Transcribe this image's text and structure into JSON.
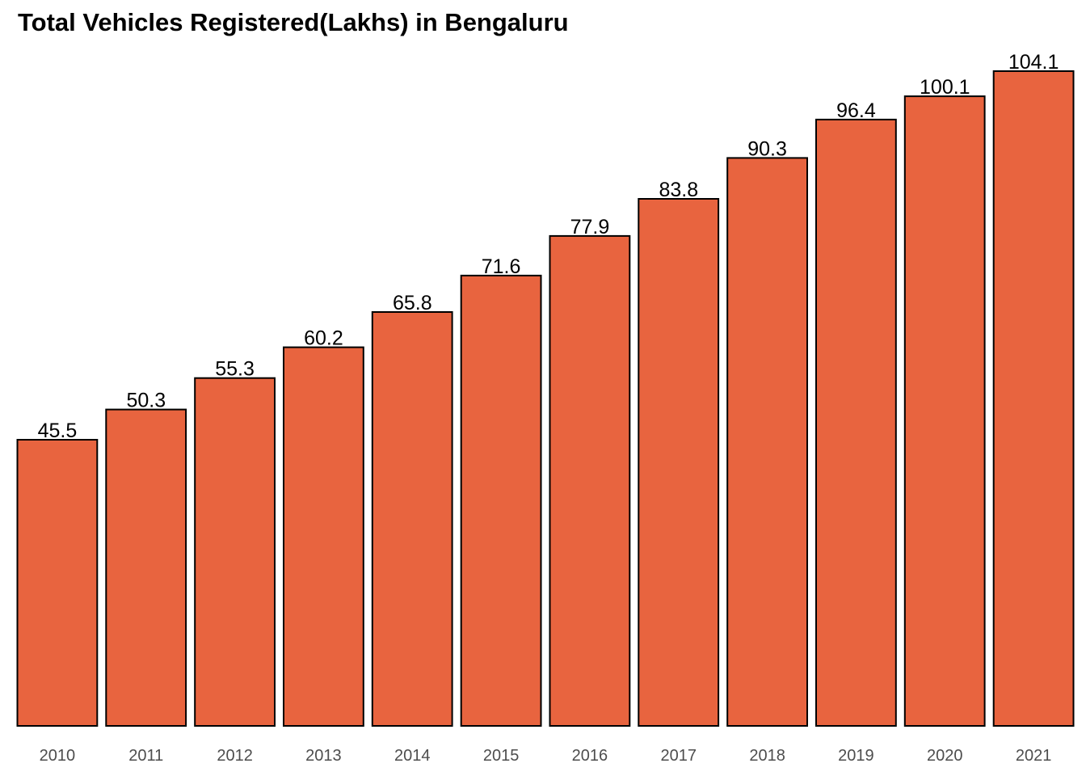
{
  "chart_data": {
    "type": "bar",
    "title": "Total Vehicles Registered(Lakhs) in Bengaluru",
    "categories": [
      "2010",
      "2011",
      "2012",
      "2013",
      "2014",
      "2015",
      "2016",
      "2017",
      "2018",
      "2019",
      "2020",
      "2021"
    ],
    "values": [
      45.5,
      50.3,
      55.3,
      60.2,
      65.8,
      71.6,
      77.9,
      83.8,
      90.3,
      96.4,
      100.1,
      104.1
    ],
    "data_labels": [
      "45.5",
      "50.3",
      "55.3",
      "60.2",
      "65.8",
      "71.6",
      "77.9",
      "83.8",
      "90.3",
      "96.4",
      "100.1",
      "104.1"
    ],
    "ylim": [
      0,
      104.1
    ],
    "grid": false,
    "legend": "none",
    "bar_color": "#E8643F",
    "bar_outline": "#000000"
  }
}
